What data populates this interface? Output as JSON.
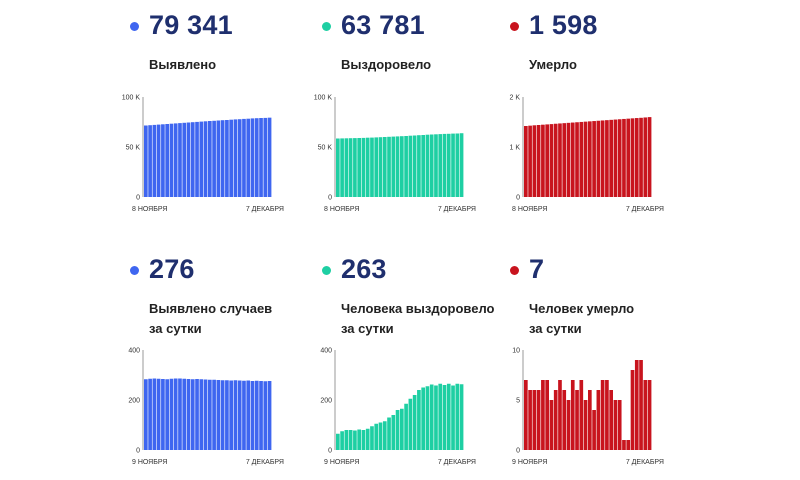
{
  "colors": {
    "blue": "#3f66f0",
    "teal": "#1ecfa3",
    "red": "#c8141e"
  },
  "chart_data": [
    {
      "type": "bar",
      "total_text": "79 341",
      "label_lines": [
        "Выявлено"
      ],
      "color": "#3f66f0",
      "ylim": [
        0,
        100000
      ],
      "yticks": [
        "0",
        "50 K",
        "100 K"
      ],
      "xticks": [
        "8 НОЯБРЯ",
        "7 ДЕКАБРЯ"
      ],
      "values": [
        71500,
        71800,
        72100,
        72400,
        72700,
        73000,
        73300,
        73600,
        73900,
        74200,
        74500,
        74800,
        75100,
        75400,
        75700,
        76000,
        76200,
        76500,
        76800,
        77000,
        77300,
        77600,
        77800,
        78100,
        78300,
        78600,
        78800,
        79000,
        79100,
        79341
      ]
    },
    {
      "type": "bar",
      "total_text": "63 781",
      "label_lines": [
        "Выздоровело"
      ],
      "color": "#1ecfa3",
      "ylim": [
        0,
        100000
      ],
      "yticks": [
        "0",
        "50 K",
        "100 K"
      ],
      "xticks": [
        "8 НОЯБРЯ",
        "7 ДЕКАБРЯ"
      ],
      "values": [
        58500,
        58600,
        58700,
        58800,
        58900,
        59000,
        59100,
        59300,
        59400,
        59600,
        59800,
        60000,
        60200,
        60400,
        60600,
        60800,
        61000,
        61300,
        61500,
        61800,
        62000,
        62300,
        62500,
        62700,
        62900,
        63100,
        63200,
        63400,
        63500,
        63781
      ]
    },
    {
      "type": "bar",
      "total_text": "1 598",
      "label_lines": [
        "Умерло"
      ],
      "color": "#c8141e",
      "ylim": [
        0,
        2000
      ],
      "yticks": [
        "0",
        "1 K",
        "2 K"
      ],
      "xticks": [
        "8 НОЯБРЯ",
        "7 ДЕКАБРЯ"
      ],
      "values": [
        1420,
        1427,
        1434,
        1440,
        1446,
        1452,
        1458,
        1465,
        1471,
        1477,
        1483,
        1489,
        1495,
        1501,
        1507,
        1513,
        1519,
        1525,
        1531,
        1537,
        1543,
        1549,
        1555,
        1561,
        1567,
        1573,
        1579,
        1584,
        1591,
        1598
      ]
    },
    {
      "type": "bar",
      "total_text": "276",
      "label_lines": [
        "Выявлено случаев",
        "за сутки"
      ],
      "color": "#3f66f0",
      "ylim": [
        0,
        400
      ],
      "yticks": [
        "0",
        "200",
        "400"
      ],
      "xticks": [
        "9 НОЯБРЯ",
        "7 ДЕКАБРЯ"
      ],
      "values": [
        283,
        285,
        286,
        285,
        284,
        283,
        285,
        286,
        286,
        285,
        284,
        283,
        284,
        283,
        282,
        281,
        281,
        280,
        279,
        279,
        278,
        279,
        278,
        277,
        278,
        276,
        277,
        276,
        275,
        276
      ]
    },
    {
      "type": "bar",
      "total_text": "263",
      "label_lines": [
        "Человека выздоровело",
        "за сутки"
      ],
      "color": "#1ecfa3",
      "ylim": [
        0,
        400
      ],
      "yticks": [
        "0",
        "200",
        "400"
      ],
      "xticks": [
        "9 НОЯБРЯ",
        "7 ДЕКАБРЯ"
      ],
      "values": [
        65,
        75,
        80,
        80,
        78,
        82,
        80,
        85,
        95,
        105,
        110,
        115,
        130,
        140,
        160,
        165,
        185,
        205,
        220,
        240,
        250,
        255,
        262,
        258,
        265,
        260,
        265,
        258,
        265,
        263
      ]
    },
    {
      "type": "bar",
      "total_text": "7",
      "label_lines": [
        "Человек умерло",
        "за сутки"
      ],
      "color": "#c8141e",
      "ylim": [
        0,
        10
      ],
      "yticks": [
        "0",
        "5",
        "10"
      ],
      "xticks": [
        "9 НОЯБРЯ",
        "7 ДЕКАБРЯ"
      ],
      "values": [
        7,
        6,
        6,
        6,
        7,
        7,
        5,
        6,
        7,
        6,
        5,
        7,
        6,
        7,
        5,
        6,
        4,
        6,
        7,
        7,
        6,
        5,
        5,
        1,
        1,
        8,
        9,
        9,
        7,
        7
      ]
    }
  ]
}
